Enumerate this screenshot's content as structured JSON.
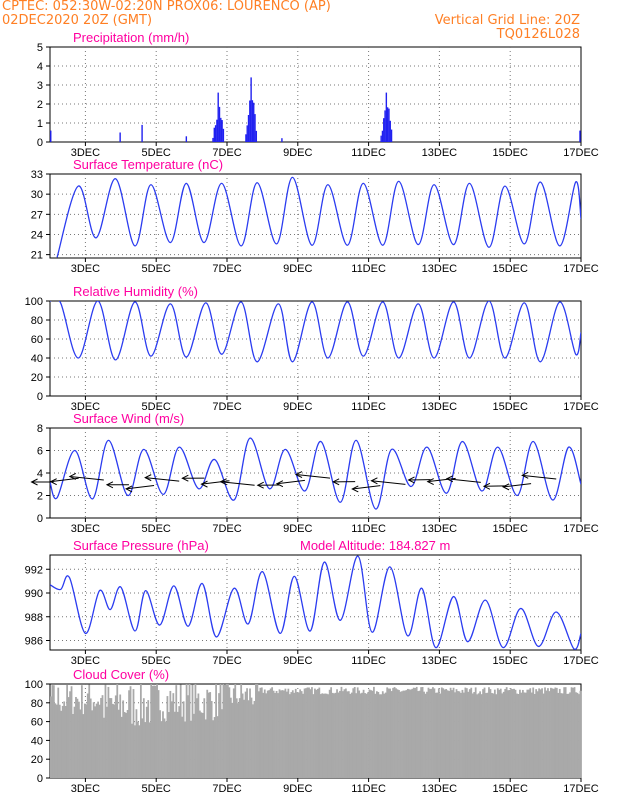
{
  "header": {
    "line1_left": "CPTEC:   052:30W-02:20N   PROX06: LOURENCO (AP)",
    "line2_left": "02DEC2020 20Z (GMT)",
    "line2_right": "Vertical Grid Line: 20Z",
    "line3_right": "TQ0126L028",
    "color": "#ff7f24"
  },
  "colors": {
    "title": "#ff00a0",
    "line": "#2b3cf0",
    "bar": "#2020f0",
    "cloud": "#a9a9a9",
    "wind_arrow": "#000000"
  },
  "x_axis": {
    "start": "02DEC2020 20Z",
    "end": "17DEC2020 20Z",
    "tick_labels": [
      "3DEC",
      "5DEC",
      "7DEC",
      "9DEC",
      "11DEC",
      "13DEC",
      "15DEC",
      "17DEC"
    ],
    "tick_days_from_start": [
      1,
      3,
      5,
      7,
      9,
      11,
      13,
      15
    ]
  },
  "chart_data": [
    {
      "type": "bar",
      "title": "Precipitation (mm/h)",
      "ylim": [
        0,
        5
      ],
      "yticks": [
        "0",
        "1",
        "2",
        "3",
        "4",
        "5"
      ],
      "events": [
        {
          "day": 0.02,
          "value": 0.6
        },
        {
          "day": 1.98,
          "value": 0.5
        },
        {
          "day": 2.6,
          "value": 0.9
        },
        {
          "day": 3.85,
          "value": 0.3
        },
        {
          "day": 4.75,
          "value": 2.6
        },
        {
          "day": 5.68,
          "value": 3.4
        },
        {
          "day": 6.55,
          "value": 0.2
        },
        {
          "day": 9.5,
          "value": 2.6
        },
        {
          "day": 14.97,
          "value": 0.6
        }
      ]
    },
    {
      "type": "line",
      "title": "Surface Temperature (nC)",
      "ylim": [
        20.5,
        33
      ],
      "yticks": [
        "21",
        "24",
        "27",
        "30",
        "33"
      ],
      "base": 23.3,
      "amp": 8.3,
      "extremes": [
        {
          "day": 0.2,
          "value": 20.6
        },
        {
          "day": 0.8,
          "value": 31.2
        },
        {
          "day": 1.3,
          "value": 23.5
        },
        {
          "day": 1.85,
          "value": 32.3
        },
        {
          "day": 2.4,
          "value": 22.3
        },
        {
          "day": 2.85,
          "value": 31.4
        },
        {
          "day": 3.4,
          "value": 22.8
        },
        {
          "day": 3.85,
          "value": 31.6
        },
        {
          "day": 4.35,
          "value": 22.8
        },
        {
          "day": 4.85,
          "value": 31.6
        },
        {
          "day": 5.4,
          "value": 22.3
        },
        {
          "day": 5.85,
          "value": 31.7
        },
        {
          "day": 6.4,
          "value": 22.6
        },
        {
          "day": 6.85,
          "value": 32.5
        },
        {
          "day": 7.4,
          "value": 22.4
        },
        {
          "day": 7.85,
          "value": 31.4
        },
        {
          "day": 8.4,
          "value": 22.4
        },
        {
          "day": 8.85,
          "value": 31.6
        },
        {
          "day": 9.4,
          "value": 22.4
        },
        {
          "day": 9.85,
          "value": 31.9
        },
        {
          "day": 10.4,
          "value": 22.5
        },
        {
          "day": 10.85,
          "value": 31.4
        },
        {
          "day": 11.4,
          "value": 22.5
        },
        {
          "day": 11.85,
          "value": 31.6
        },
        {
          "day": 12.4,
          "value": 22.1
        },
        {
          "day": 12.85,
          "value": 31.2
        },
        {
          "day": 13.4,
          "value": 22.6
        },
        {
          "day": 13.85,
          "value": 31.8
        },
        {
          "day": 14.4,
          "value": 22.3
        },
        {
          "day": 14.85,
          "value": 31.8
        },
        {
          "day": 15.0,
          "value": 26.3
        }
      ]
    },
    {
      "type": "line",
      "title": "Relative Humidity (%)",
      "ylim": [
        0,
        100
      ],
      "yticks": [
        "0",
        "20",
        "40",
        "60",
        "80",
        "100"
      ],
      "base": 40,
      "amp": 60,
      "extremes": [
        {
          "day": 0.0,
          "value": 100
        },
        {
          "day": 0.3,
          "value": 98
        },
        {
          "day": 0.8,
          "value": 40
        },
        {
          "day": 1.35,
          "value": 100
        },
        {
          "day": 1.85,
          "value": 38
        },
        {
          "day": 2.4,
          "value": 99
        },
        {
          "day": 2.85,
          "value": 42
        },
        {
          "day": 3.4,
          "value": 97
        },
        {
          "day": 3.85,
          "value": 41
        },
        {
          "day": 4.4,
          "value": 98
        },
        {
          "day": 4.85,
          "value": 44
        },
        {
          "day": 5.4,
          "value": 99
        },
        {
          "day": 5.85,
          "value": 36
        },
        {
          "day": 6.45,
          "value": 97
        },
        {
          "day": 6.85,
          "value": 36
        },
        {
          "day": 7.4,
          "value": 99
        },
        {
          "day": 7.85,
          "value": 40
        },
        {
          "day": 8.4,
          "value": 99
        },
        {
          "day": 8.85,
          "value": 42
        },
        {
          "day": 9.4,
          "value": 99
        },
        {
          "day": 9.85,
          "value": 40
        },
        {
          "day": 10.4,
          "value": 97
        },
        {
          "day": 10.85,
          "value": 40
        },
        {
          "day": 11.4,
          "value": 99
        },
        {
          "day": 11.85,
          "value": 40
        },
        {
          "day": 12.4,
          "value": 100
        },
        {
          "day": 12.85,
          "value": 40
        },
        {
          "day": 13.4,
          "value": 98
        },
        {
          "day": 13.85,
          "value": 36
        },
        {
          "day": 14.4,
          "value": 99
        },
        {
          "day": 14.85,
          "value": 44
        },
        {
          "day": 15.0,
          "value": 67
        }
      ]
    },
    {
      "type": "line",
      "title": "Surface Wind (m/s)",
      "ylim": [
        0,
        8
      ],
      "yticks": [
        "0",
        "2",
        "4",
        "6",
        "8"
      ],
      "base": 2.5,
      "amp": 4,
      "extremes": [
        {
          "day": 0.0,
          "value": 3.2
        },
        {
          "day": 0.2,
          "value": 1.8
        },
        {
          "day": 0.7,
          "value": 6.0
        },
        {
          "day": 1.2,
          "value": 1.7
        },
        {
          "day": 1.65,
          "value": 6.9
        },
        {
          "day": 2.2,
          "value": 2.0
        },
        {
          "day": 2.65,
          "value": 6.1
        },
        {
          "day": 3.2,
          "value": 2.1
        },
        {
          "day": 3.65,
          "value": 6.3
        },
        {
          "day": 4.2,
          "value": 2.6
        },
        {
          "day": 4.65,
          "value": 5.2
        },
        {
          "day": 5.2,
          "value": 1.6
        },
        {
          "day": 5.65,
          "value": 7.1
        },
        {
          "day": 6.2,
          "value": 2.6
        },
        {
          "day": 6.65,
          "value": 6.1
        },
        {
          "day": 7.2,
          "value": 2.4
        },
        {
          "day": 7.65,
          "value": 6.8
        },
        {
          "day": 8.2,
          "value": 1.4
        },
        {
          "day": 8.65,
          "value": 6.9
        },
        {
          "day": 9.2,
          "value": 0.8
        },
        {
          "day": 9.65,
          "value": 6.1
        },
        {
          "day": 10.2,
          "value": 2.8
        },
        {
          "day": 10.65,
          "value": 6.3
        },
        {
          "day": 11.2,
          "value": 2.2
        },
        {
          "day": 11.65,
          "value": 6.8
        },
        {
          "day": 12.2,
          "value": 2.4
        },
        {
          "day": 12.65,
          "value": 6.3
        },
        {
          "day": 13.2,
          "value": 2.0
        },
        {
          "day": 13.65,
          "value": 6.8
        },
        {
          "day": 14.2,
          "value": 1.6
        },
        {
          "day": 14.65,
          "value": 6.3
        },
        {
          "day": 15.0,
          "value": 3.0
        }
      ],
      "wind_arrows": {
        "count": 21,
        "first_day": 0.1,
        "step_days": 0.71,
        "direction": "from-east"
      }
    },
    {
      "type": "line",
      "title": "Surface Pressure (hPa)",
      "annotation": "Model Altitude: 184.827 m",
      "ylim": [
        985.2,
        993.2
      ],
      "yticks": [
        "986",
        "988",
        "990",
        "992"
      ],
      "base": 989,
      "amp": 2.5,
      "extremes": [
        {
          "day": 0.0,
          "value": 990.7
        },
        {
          "day": 0.3,
          "value": 990.3
        },
        {
          "day": 0.55,
          "value": 991.3
        },
        {
          "day": 1.0,
          "value": 986.6
        },
        {
          "day": 1.4,
          "value": 990.2
        },
        {
          "day": 1.7,
          "value": 988.6
        },
        {
          "day": 2.0,
          "value": 990.5
        },
        {
          "day": 2.4,
          "value": 986.8
        },
        {
          "day": 2.7,
          "value": 990.2
        },
        {
          "day": 3.1,
          "value": 987.3
        },
        {
          "day": 3.5,
          "value": 990.6
        },
        {
          "day": 3.9,
          "value": 987.2
        },
        {
          "day": 4.3,
          "value": 990.8
        },
        {
          "day": 4.7,
          "value": 986.3
        },
        {
          "day": 5.2,
          "value": 990.4
        },
        {
          "day": 5.6,
          "value": 987.4
        },
        {
          "day": 6.0,
          "value": 991.8
        },
        {
          "day": 6.5,
          "value": 986.6
        },
        {
          "day": 6.9,
          "value": 991.4
        },
        {
          "day": 7.35,
          "value": 986.8
        },
        {
          "day": 7.75,
          "value": 992.6
        },
        {
          "day": 8.2,
          "value": 987.7
        },
        {
          "day": 8.7,
          "value": 993.1
        },
        {
          "day": 9.1,
          "value": 986.7
        },
        {
          "day": 9.6,
          "value": 992.2
        },
        {
          "day": 10.1,
          "value": 986.4
        },
        {
          "day": 10.5,
          "value": 990.4
        },
        {
          "day": 10.9,
          "value": 985.4
        },
        {
          "day": 11.4,
          "value": 989.7
        },
        {
          "day": 11.8,
          "value": 985.9
        },
        {
          "day": 12.3,
          "value": 989.4
        },
        {
          "day": 12.8,
          "value": 985.4
        },
        {
          "day": 13.3,
          "value": 988.7
        },
        {
          "day": 13.8,
          "value": 985.5
        },
        {
          "day": 14.3,
          "value": 988.4
        },
        {
          "day": 14.8,
          "value": 985.3
        },
        {
          "day": 15.0,
          "value": 986.6
        }
      ]
    },
    {
      "type": "bar",
      "title": "Cloud Cover (%)",
      "ylim": [
        0,
        100
      ],
      "yticks": [
        "0",
        "20",
        "40",
        "60",
        "80",
        "100"
      ],
      "bar_count": 360,
      "segments": [
        {
          "from_day": 0.0,
          "to_day": 1.5,
          "mean": 84,
          "spread": 18
        },
        {
          "from_day": 1.5,
          "to_day": 3.0,
          "mean": 78,
          "spread": 26
        },
        {
          "from_day": 3.0,
          "to_day": 4.8,
          "mean": 82,
          "spread": 22
        },
        {
          "from_day": 4.8,
          "to_day": 5.9,
          "mean": 88,
          "spread": 16
        },
        {
          "from_day": 5.9,
          "to_day": 15.0,
          "mean": 93,
          "spread": 4
        }
      ]
    }
  ]
}
